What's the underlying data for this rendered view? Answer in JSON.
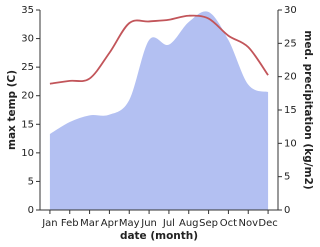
{
  "chart_data": {
    "type": "line-area",
    "x_label": "date (month)",
    "y_label": "max temp (C)",
    "y2_label": "med. precipitation (kg/m2)",
    "categories": [
      "Jan",
      "Feb",
      "Mar",
      "Apr",
      "May",
      "Jun",
      "Jul",
      "Aug",
      "Sep",
      "Oct",
      "Nov",
      "Dec"
    ],
    "series": [
      {
        "name": "precipitation",
        "kind": "area",
        "axis": "y2",
        "color": "#b3c0f2",
        "values": [
          11.4,
          13.2,
          14.2,
          14.3,
          16.5,
          25.5,
          24.8,
          28.2,
          29.7,
          25.5,
          18.8,
          17.7
        ]
      },
      {
        "name": "max temp",
        "kind": "line",
        "color": "#c2555a",
        "values": [
          22.1,
          22.6,
          23.0,
          27.5,
          32.7,
          33.0,
          33.3,
          34.0,
          33.5,
          30.5,
          28.5,
          23.6
        ]
      }
    ],
    "ylim": [
      0,
      35
    ],
    "yticks": [
      0,
      5,
      10,
      15,
      20,
      25,
      30,
      35
    ],
    "y2lim": [
      0,
      30
    ],
    "y2ticks": [
      0,
      5,
      10,
      15,
      20,
      25,
      30
    ]
  }
}
